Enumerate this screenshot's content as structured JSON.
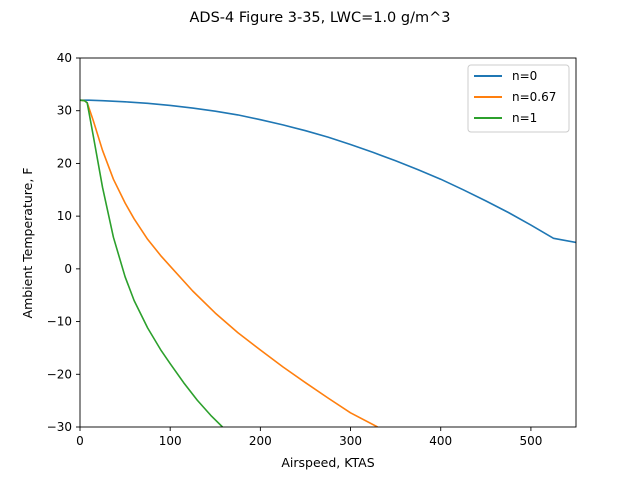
{
  "chart_data": {
    "type": "line",
    "title": "ADS-4 Figure 3-35, LWC=1.0 g/m^3",
    "xlabel": "Airspeed, KTAS",
    "ylabel": "Ambient Temperature, F",
    "xlim": [
      0,
      550
    ],
    "ylim": [
      -30,
      40
    ],
    "xticks": [
      0,
      100,
      200,
      300,
      400,
      500
    ],
    "yticks": [
      -30,
      -20,
      -10,
      0,
      10,
      20,
      30,
      40
    ],
    "grid": false,
    "legend_position": "top-right",
    "series": [
      {
        "name": "n=0",
        "color": "#1f77b4",
        "x": [
          0,
          10,
          25,
          50,
          75,
          100,
          125,
          150,
          175,
          200,
          225,
          250,
          275,
          300,
          325,
          350,
          375,
          400,
          425,
          450,
          475,
          500,
          525,
          550
        ],
        "y": [
          32,
          32.0,
          31.9,
          31.7,
          31.4,
          31.0,
          30.5,
          29.9,
          29.2,
          28.3,
          27.3,
          26.2,
          25.0,
          23.6,
          22.1,
          20.5,
          18.8,
          17.0,
          15.0,
          12.9,
          10.7,
          8.3,
          5.8,
          5.0
        ]
      },
      {
        "name": "n=0.67",
        "color": "#ff7f0e",
        "x": [
          0,
          5,
          8,
          15,
          25,
          37,
          50,
          60,
          75,
          90,
          100,
          125,
          150,
          175,
          200,
          225,
          250,
          275,
          300,
          330
        ],
        "y": [
          32,
          31.9,
          31.5,
          28.0,
          22.5,
          17.0,
          12.5,
          9.5,
          5.6,
          2.4,
          0.5,
          -4.2,
          -8.4,
          -12.1,
          -15.4,
          -18.6,
          -21.6,
          -24.5,
          -27.3,
          -30
        ]
      },
      {
        "name": "n=1",
        "color": "#2ca02c",
        "x": [
          0,
          5,
          8,
          15,
          25,
          37,
          50,
          60,
          75,
          90,
          100,
          115,
          130,
          145,
          158
        ],
        "y": [
          32,
          31.9,
          31.5,
          25.0,
          15.5,
          6.0,
          -1.5,
          -6.0,
          -11.2,
          -15.5,
          -18.0,
          -21.6,
          -24.9,
          -27.8,
          -30
        ]
      }
    ]
  }
}
